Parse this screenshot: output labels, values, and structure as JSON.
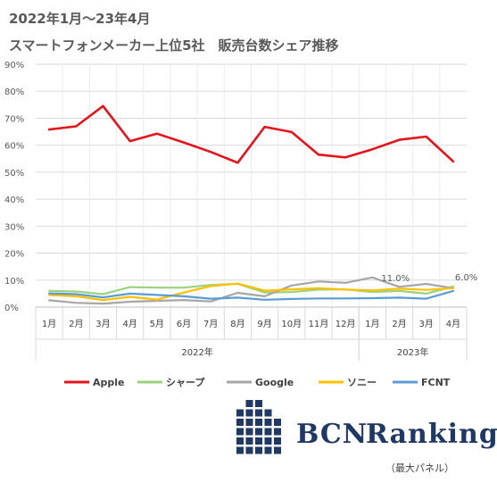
{
  "title_line1": "2022年1月～23年4月",
  "title_line2": "スマートフォンメーカー上位5社　販売台数シェア推移",
  "logo": {
    "brand": "BCN",
    "word": "Ranking",
    "color": "#1f3864"
  },
  "footnote": "（最大パネル）",
  "chart_data": {
    "type": "line",
    "categories": [
      "1月",
      "2月",
      "3月",
      "4月",
      "5月",
      "6月",
      "7月",
      "8月",
      "9月",
      "10月",
      "11月",
      "12月",
      "1月",
      "2月",
      "3月",
      "4月"
    ],
    "groups": [
      {
        "label": "2022年",
        "start": 0,
        "end": 11
      },
      {
        "label": "2023年",
        "start": 12,
        "end": 15
      }
    ],
    "yticks": [
      "0%",
      "10%",
      "20%",
      "30%",
      "40%",
      "50%",
      "60%",
      "70%",
      "80%",
      "90%"
    ],
    "ylim": [
      0,
      90
    ],
    "grid": true,
    "legend_position": "bottom",
    "series": [
      {
        "name": "Apple",
        "color": "#e3141c",
        "width": 2.6,
        "values": [
          65.8,
          67,
          74.5,
          61.5,
          64.3,
          61,
          57.5,
          53.5,
          66.8,
          64.9,
          56.5,
          55.5,
          58.5,
          62,
          63.2,
          54
        ]
      },
      {
        "name": "シャープ",
        "color": "#9bd27d",
        "width": 2.2,
        "values": [
          6,
          5.8,
          4.8,
          7.4,
          7.2,
          7.2,
          8.2,
          8.6,
          5.4,
          5.6,
          6.5,
          6.6,
          5.6,
          6,
          5,
          7.6
        ]
      },
      {
        "name": "Google",
        "color": "#a6a6a6",
        "width": 2.2,
        "values": [
          2.5,
          1.6,
          1.3,
          2,
          2.3,
          2.6,
          2.1,
          5.3,
          4,
          8,
          9.5,
          9,
          11,
          7.5,
          8.6,
          7
        ]
      },
      {
        "name": "ソニー",
        "color": "#ffc000",
        "width": 2.2,
        "values": [
          4.5,
          4,
          2.6,
          3.8,
          2.8,
          5.4,
          7.8,
          8.7,
          6.1,
          6.6,
          7,
          6.5,
          6.2,
          6.8,
          6.4,
          7
        ]
      },
      {
        "name": "FCNT",
        "color": "#5b9bd5",
        "width": 2.2,
        "values": [
          5.1,
          4.8,
          3.6,
          5,
          4.5,
          4,
          3.1,
          3.5,
          2.7,
          3,
          3.2,
          3.2,
          3.3,
          3.5,
          3.1,
          6
        ]
      }
    ],
    "annotations": [
      {
        "series": "Google",
        "index": 12,
        "text": "11.0%"
      },
      {
        "series": "FCNT",
        "index": 15,
        "text": "6.0%"
      }
    ]
  }
}
